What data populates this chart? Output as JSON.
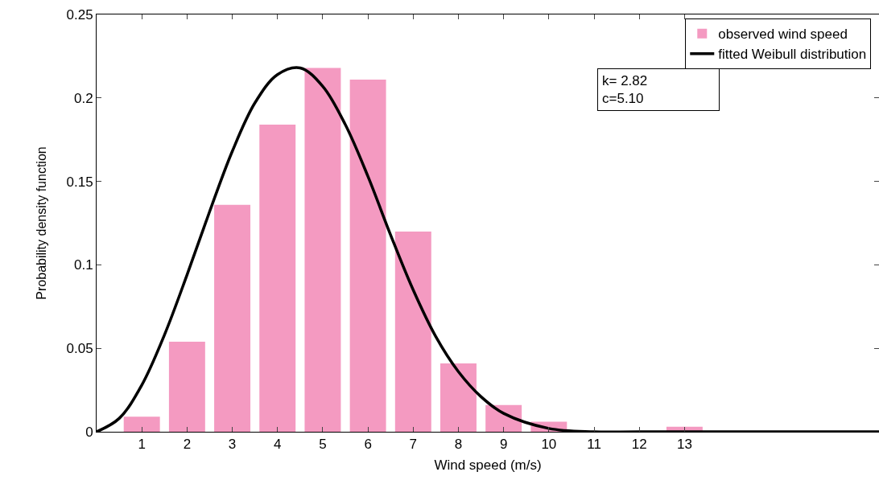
{
  "chart_data": {
    "type": "bar",
    "xlabel": "Wind speed (m/s)",
    "ylabel": "Probability density function",
    "x": [
      1,
      2,
      3,
      4,
      5,
      6,
      7,
      8,
      9,
      10,
      11,
      12,
      13
    ],
    "series": [
      {
        "name": "observed wind speed",
        "color": "#f49ac1",
        "values": [
          0.009,
          0.054,
          0.136,
          0.184,
          0.218,
          0.211,
          0.12,
          0.041,
          0.016,
          0.006,
          0,
          0,
          0.003
        ]
      },
      {
        "name": "fitted Weibull distribution",
        "type": "line",
        "color": "#000000",
        "x": [
          0,
          0.5,
          1,
          1.5,
          2,
          2.5,
          3,
          3.5,
          4,
          4.5,
          5,
          5.5,
          6,
          6.5,
          7,
          7.5,
          8,
          8.5,
          9,
          10,
          11,
          12,
          17.3
        ],
        "values": [
          0,
          0.008,
          0.028,
          0.058,
          0.094,
          0.132,
          0.168,
          0.197,
          0.214,
          0.218,
          0.207,
          0.184,
          0.153,
          0.118,
          0.085,
          0.057,
          0.036,
          0.021,
          0.011,
          0.002,
          0,
          0,
          0
        ]
      }
    ],
    "xlim": [
      0,
      17.3
    ],
    "xticks": [
      1,
      2,
      3,
      4,
      5,
      6,
      7,
      8,
      9,
      10,
      11,
      12,
      13
    ],
    "ylim": [
      0,
      0.25
    ],
    "yticks": [
      0,
      0.05,
      0.1,
      0.15,
      0.2,
      0.25
    ],
    "annotations": [
      "k= 2.82\nc=5.10"
    ],
    "grid": false,
    "legend": "top right",
    "marker": "none",
    "line_style": "solid"
  }
}
